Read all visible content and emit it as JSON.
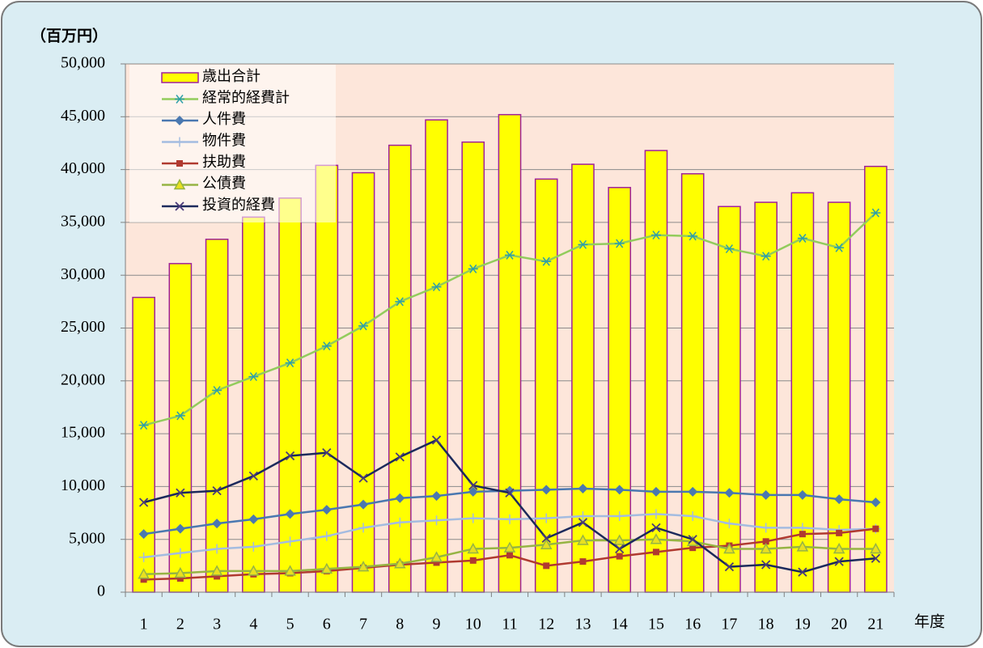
{
  "chart_data": {
    "type": "bar",
    "y_unit_label": "（百万円）",
    "x_label": "年度",
    "categories": [
      "1",
      "2",
      "3",
      "4",
      "5",
      "6",
      "7",
      "8",
      "9",
      "10",
      "11",
      "12",
      "13",
      "14",
      "15",
      "16",
      "17",
      "18",
      "19",
      "20",
      "21"
    ],
    "ylim": [
      0,
      50000
    ],
    "yticks": [
      {
        "value": 0,
        "label": "0"
      },
      {
        "value": 5000,
        "label": "5,000"
      },
      {
        "value": 10000,
        "label": "10,000"
      },
      {
        "value": 15000,
        "label": "15,000"
      },
      {
        "value": 20000,
        "label": "20,000"
      },
      {
        "value": 25000,
        "label": "25,000"
      },
      {
        "value": 30000,
        "label": "30,000"
      },
      {
        "value": 35000,
        "label": "35,000"
      },
      {
        "value": 40000,
        "label": "40,000"
      },
      {
        "value": 45000,
        "label": "45,000"
      },
      {
        "value": 50000,
        "label": "50,000"
      }
    ],
    "grid": true,
    "legend": "top-left",
    "series": [
      {
        "name": "歳出合計",
        "type": "bar",
        "color": "#ffff00",
        "edge_color": "#a0209a",
        "values": [
          27900,
          31100,
          33400,
          35500,
          37300,
          40400,
          39700,
          42300,
          44700,
          42600,
          45200,
          39100,
          40500,
          38300,
          41800,
          39600,
          36500,
          36900,
          37800,
          36900,
          40300
        ]
      },
      {
        "name": "経常的経費計",
        "type": "line",
        "color": "#92cc5c",
        "marker": "asterisk",
        "marker_color": "#2f9fa8",
        "values": [
          15800,
          16700,
          19100,
          20400,
          21700,
          23300,
          25200,
          27500,
          28900,
          30600,
          31900,
          31300,
          32900,
          33000,
          33800,
          33700,
          32500,
          31800,
          33500,
          32600,
          35900
        ]
      },
      {
        "name": "人件費",
        "type": "line",
        "color": "#4a78b0",
        "marker": "diamond",
        "marker_color": "#4a78b0",
        "values": [
          5500,
          6000,
          6500,
          6900,
          7400,
          7800,
          8300,
          8900,
          9100,
          9500,
          9600,
          9700,
          9800,
          9700,
          9500,
          9500,
          9400,
          9200,
          9200,
          8800,
          8500
        ]
      },
      {
        "name": "物件費",
        "type": "line",
        "color": "#a4bce0",
        "marker": "plus",
        "marker_color": "#a4bce0",
        "values": [
          3300,
          3700,
          4100,
          4300,
          4800,
          5300,
          6100,
          6600,
          6800,
          7000,
          6900,
          7000,
          7200,
          7200,
          7400,
          7200,
          6500,
          6100,
          6100,
          5900,
          6000
        ]
      },
      {
        "name": "扶助費",
        "type": "line",
        "color": "#b03a30",
        "marker": "square",
        "marker_color": "#b03a30",
        "values": [
          1200,
          1300,
          1500,
          1700,
          1800,
          2000,
          2300,
          2600,
          2800,
          3000,
          3500,
          2500,
          2900,
          3400,
          3800,
          4200,
          4400,
          4800,
          5500,
          5600,
          6000
        ]
      },
      {
        "name": "公債費",
        "type": "line",
        "color": "#96b444",
        "marker": "triangle",
        "marker_color": "#96b444",
        "values": [
          1700,
          1800,
          2000,
          2000,
          2000,
          2200,
          2400,
          2700,
          3300,
          4100,
          4200,
          4500,
          4900,
          4900,
          5000,
          4800,
          4100,
          4100,
          4300,
          4100,
          4100
        ]
      },
      {
        "name": "投資的経費",
        "type": "line",
        "color": "#1c2a5c",
        "marker": "x",
        "marker_color": "#4a3a7a",
        "values": [
          8500,
          9400,
          9600,
          11000,
          12900,
          13200,
          10800,
          12800,
          14400,
          10100,
          9400,
          5100,
          6600,
          4100,
          6100,
          5000,
          2400,
          2600,
          1900,
          2900,
          3200
        ]
      }
    ]
  }
}
